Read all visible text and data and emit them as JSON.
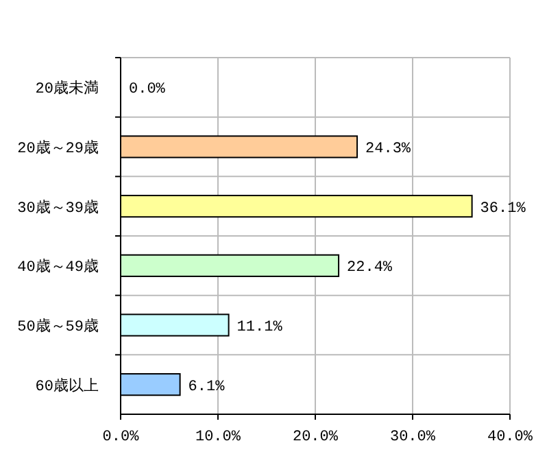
{
  "chart_data": {
    "type": "bar",
    "orientation": "horizontal",
    "categories": [
      "20歳未満",
      "20歳～29歳",
      "30歳～39歳",
      "40歳～49歳",
      "50歳～59歳",
      "60歳以上"
    ],
    "values": [
      0.0,
      24.3,
      36.1,
      22.4,
      11.1,
      6.1
    ],
    "colors": [
      "#9999ff",
      "#ffcc99",
      "#ffff99",
      "#ccffcc",
      "#ccffff",
      "#99ccff"
    ],
    "value_labels": [
      "0.0%",
      "24.3%",
      "36.1%",
      "22.4%",
      "11.1%",
      "6.1%"
    ],
    "xlim": [
      0,
      40
    ],
    "xticks": [
      {
        "value": 0,
        "label": "0.0%"
      },
      {
        "value": 10,
        "label": "10.0%"
      },
      {
        "value": 20,
        "label": "20.0%"
      },
      {
        "value": 30,
        "label": "30.0%"
      },
      {
        "value": 40,
        "label": "40.0%"
      }
    ],
    "grid": true
  }
}
